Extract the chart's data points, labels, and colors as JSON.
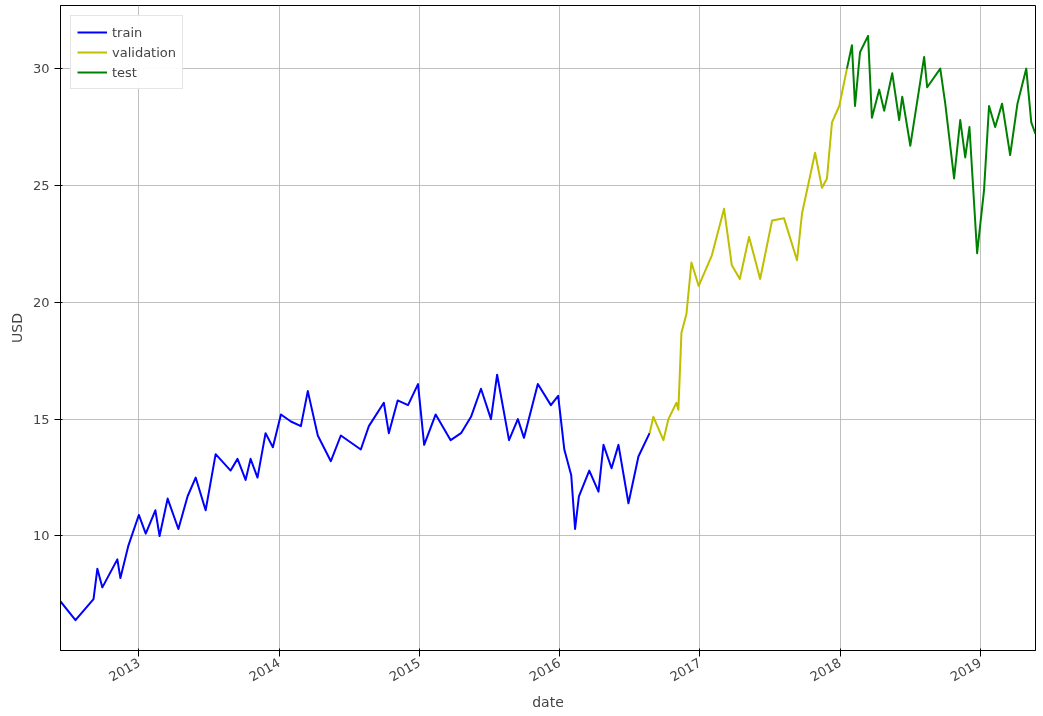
{
  "chart_data": {
    "type": "line",
    "xlabel": "date",
    "ylabel": "USD",
    "xlim": [
      "2012-06-11",
      "2019-05-25"
    ],
    "ylim": [
      5.1,
      32.7
    ],
    "xticks": [
      {
        "value": "2013-01-01",
        "label": "2013"
      },
      {
        "value": "2014-01-01",
        "label": "2014"
      },
      {
        "value": "2015-01-01",
        "label": "2015"
      },
      {
        "value": "2016-01-01",
        "label": "2016"
      },
      {
        "value": "2017-01-01",
        "label": "2017"
      },
      {
        "value": "2018-01-01",
        "label": "2018"
      },
      {
        "value": "2019-01-01",
        "label": "2019"
      }
    ],
    "yticks": [
      10,
      15,
      20,
      25,
      30
    ],
    "grid": true,
    "legend": "top left",
    "line_style": "solid",
    "marker": "none",
    "series": [
      {
        "name": "train",
        "color": "#0000ff",
        "x": [
          "2012-06-11",
          "2012-07-20",
          "2012-09-05",
          "2012-09-15",
          "2012-09-28",
          "2012-11-06",
          "2012-11-14",
          "2012-12-05",
          "2013-01-01",
          "2013-01-19",
          "2013-02-13",
          "2013-02-24",
          "2013-03-17",
          "2013-04-14",
          "2013-05-08",
          "2013-05-29",
          "2013-06-24",
          "2013-07-20",
          "2013-08-28",
          "2013-09-15",
          "2013-10-06",
          "2013-10-19",
          "2013-11-06",
          "2013-11-27",
          "2013-12-16",
          "2014-01-06",
          "2014-02-01",
          "2014-02-27",
          "2014-03-17",
          "2014-04-12",
          "2014-05-16",
          "2014-06-11",
          "2014-08-02",
          "2014-08-23",
          "2014-10-01",
          "2014-10-14",
          "2014-11-06",
          "2014-12-03",
          "2014-12-29",
          "2015-01-14",
          "2015-02-13",
          "2015-03-24",
          "2015-04-20",
          "2015-05-16",
          "2015-06-11",
          "2015-07-07",
          "2015-07-23",
          "2015-08-23",
          "2015-09-15",
          "2015-10-01",
          "2015-11-06",
          "2015-12-10",
          "2015-12-29",
          "2016-01-14",
          "2016-02-01",
          "2016-02-11",
          "2016-02-21",
          "2016-03-19",
          "2016-04-12",
          "2016-04-25",
          "2016-05-16",
          "2016-06-03",
          "2016-06-29",
          "2016-07-25",
          "2016-08-23"
        ],
        "values": [
          7.2,
          6.4,
          7.3,
          8.6,
          7.8,
          9.0,
          8.2,
          9.6,
          10.9,
          10.1,
          11.1,
          10.0,
          11.6,
          10.3,
          11.7,
          12.5,
          11.1,
          13.5,
          12.8,
          13.3,
          12.4,
          13.3,
          12.5,
          14.4,
          13.8,
          15.2,
          14.9,
          14.7,
          16.2,
          14.3,
          13.2,
          14.3,
          13.7,
          14.7,
          15.7,
          14.4,
          15.8,
          15.6,
          16.5,
          13.9,
          15.2,
          14.1,
          14.4,
          15.1,
          16.3,
          15.0,
          16.9,
          14.1,
          15.0,
          14.2,
          16.5,
          15.6,
          16.0,
          13.7,
          12.6,
          10.3,
          11.7,
          12.8,
          11.9,
          13.9,
          12.9,
          13.9,
          11.4,
          13.4,
          14.4
        ]
      },
      {
        "name": "validation",
        "color": "#bfbf00",
        "x": [
          "2016-08-23",
          "2016-09-02",
          "2016-09-28",
          "2016-10-11",
          "2016-11-01",
          "2016-11-06",
          "2016-11-14",
          "2016-11-27",
          "2016-12-10",
          "2016-12-29",
          "2017-02-01",
          "2017-03-05",
          "2017-03-25",
          "2017-04-15",
          "2017-05-09",
          "2017-06-07",
          "2017-07-08",
          "2017-08-08",
          "2017-09-11",
          "2017-09-24",
          "2017-10-28",
          "2017-11-15",
          "2017-11-28",
          "2017-12-11",
          "2017-12-30",
          "2018-01-19"
        ],
        "values": [
          14.4,
          15.1,
          14.1,
          15.0,
          15.7,
          15.4,
          18.7,
          19.5,
          21.7,
          20.7,
          22.0,
          24.0,
          21.6,
          21.0,
          22.8,
          21.0,
          23.5,
          23.6,
          21.8,
          23.8,
          26.4,
          24.9,
          25.3,
          27.7,
          28.4,
          30.0
        ]
      },
      {
        "name": "test",
        "color": "#008000",
        "x": [
          "2018-01-19",
          "2018-02-01",
          "2018-02-09",
          "2018-02-22",
          "2018-03-15",
          "2018-03-25",
          "2018-04-13",
          "2018-04-26",
          "2018-05-17",
          "2018-06-04",
          "2018-06-12",
          "2018-07-03",
          "2018-08-08",
          "2018-08-16",
          "2018-09-19",
          "2018-10-02",
          "2018-10-25",
          "2018-11-10",
          "2018-11-23",
          "2018-12-04",
          "2018-12-24",
          "2019-01-11",
          "2019-01-24",
          "2019-02-09",
          "2019-02-27",
          "2019-03-20",
          "2019-04-08",
          "2019-05-01",
          "2019-05-14",
          "2019-05-25"
        ],
        "values": [
          30.0,
          31.0,
          28.4,
          30.7,
          31.4,
          27.9,
          29.1,
          28.2,
          29.8,
          27.8,
          28.8,
          26.7,
          30.5,
          29.2,
          30.0,
          28.5,
          25.3,
          27.8,
          26.2,
          27.5,
          22.1,
          24.8,
          28.4,
          27.5,
          28.5,
          26.3,
          28.5,
          30.0,
          27.7,
          27.2
        ]
      }
    ]
  }
}
